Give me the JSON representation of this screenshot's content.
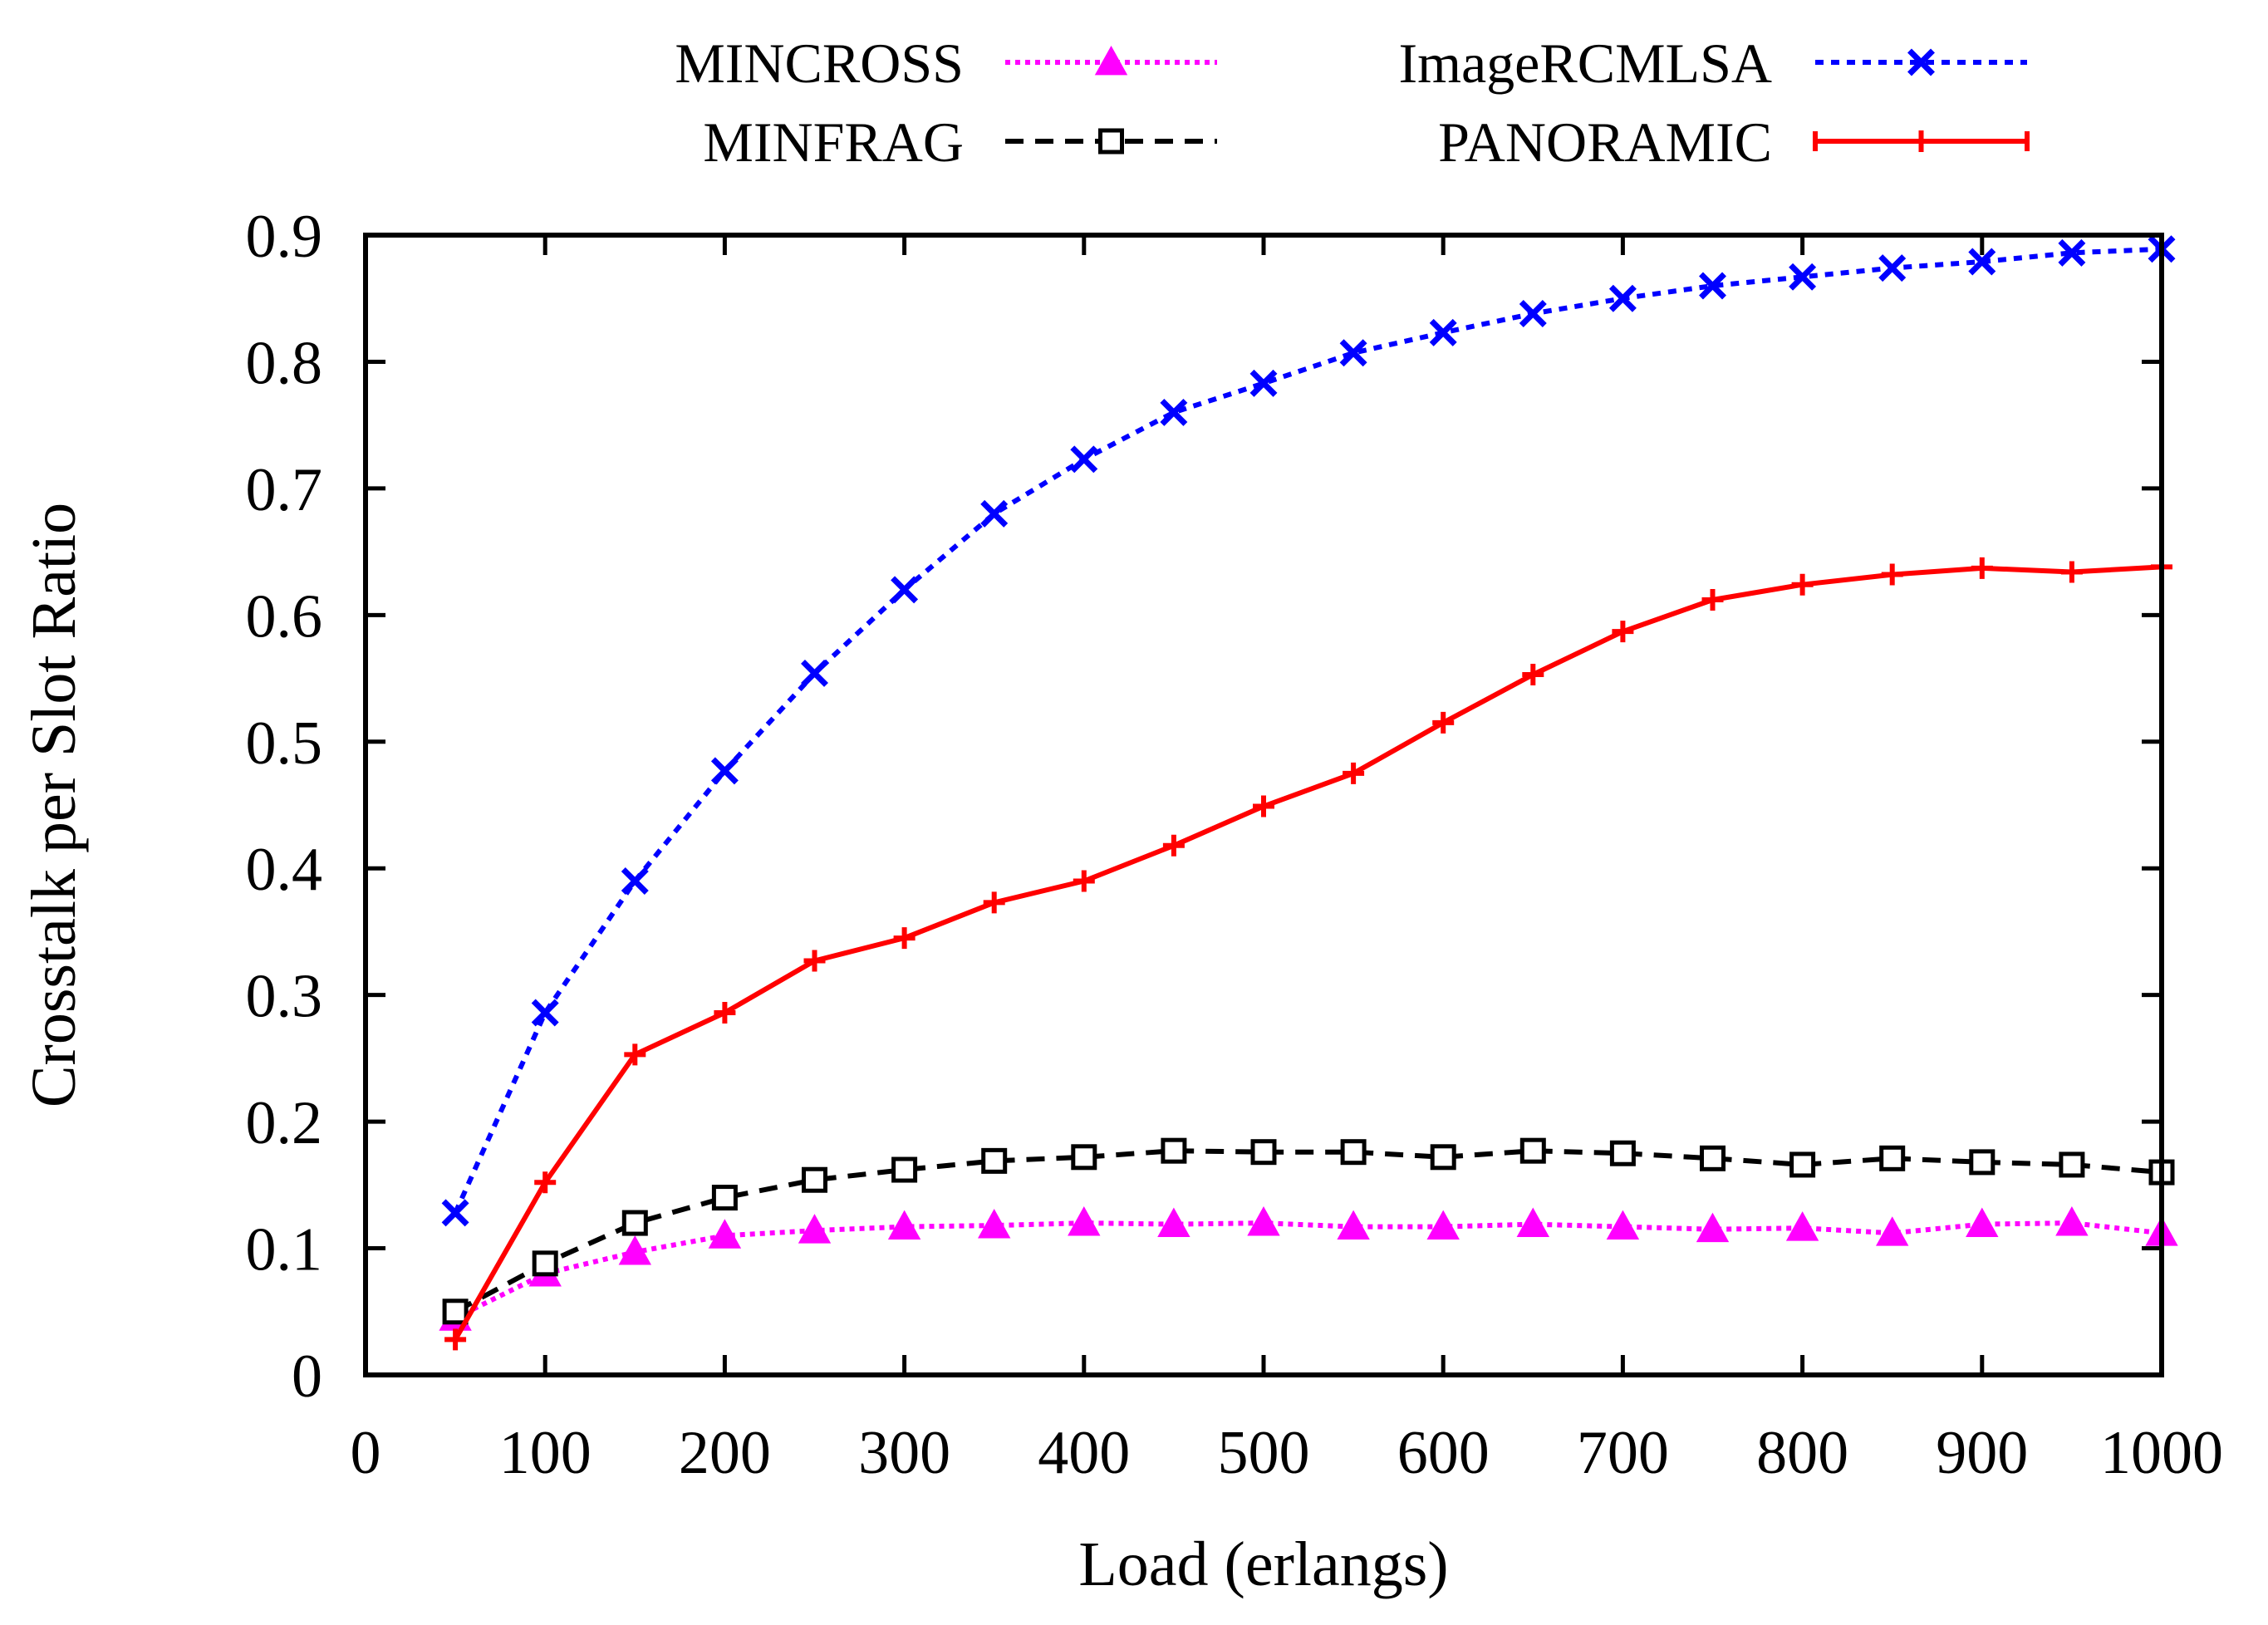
{
  "chart_data": {
    "type": "line",
    "title": "",
    "xlabel": "Load (erlangs)",
    "ylabel": "Crosstalk per Slot Ratio",
    "xlim": [
      0,
      1000
    ],
    "ylim": [
      0,
      0.9
    ],
    "xticks": [
      0,
      100,
      200,
      300,
      400,
      500,
      600,
      700,
      800,
      900,
      1000
    ],
    "yticks": [
      0,
      0.1,
      0.2,
      0.3,
      0.4,
      0.5,
      0.6,
      0.7,
      0.8,
      0.9
    ],
    "legend_position": "top, outside plot area",
    "x": [
      50,
      100,
      150,
      200,
      250,
      300,
      350,
      400,
      450,
      500,
      550,
      600,
      650,
      700,
      750,
      800,
      850,
      900,
      950,
      1000
    ],
    "series": [
      {
        "name": "MINCROSS",
        "color": "#ff00ff",
        "dash": "dotted",
        "marker": "triangle",
        "values": [
          0.045,
          0.08,
          0.097,
          0.11,
          0.114,
          0.117,
          0.118,
          0.12,
          0.119,
          0.12,
          0.117,
          0.117,
          0.119,
          0.117,
          0.115,
          0.116,
          0.112,
          0.119,
          0.12,
          0.112
        ]
      },
      {
        "name": "MINFRAG",
        "color": "#000000",
        "dash": "dashed",
        "marker": "square",
        "values": [
          0.05,
          0.088,
          0.12,
          0.14,
          0.154,
          0.162,
          0.169,
          0.172,
          0.177,
          0.176,
          0.176,
          0.172,
          0.177,
          0.175,
          0.171,
          0.166,
          0.171,
          0.168,
          0.166,
          0.16
        ]
      },
      {
        "name": "ImageRCMLSA",
        "color": "#0000ff",
        "dash": "dotted-fine",
        "marker": "cross",
        "values": [
          0.128,
          0.286,
          0.39,
          0.477,
          0.554,
          0.62,
          0.68,
          0.723,
          0.76,
          0.783,
          0.807,
          0.823,
          0.838,
          0.85,
          0.86,
          0.867,
          0.874,
          0.879,
          0.886,
          0.889
        ]
      },
      {
        "name": "PANORAMIC",
        "color": "#ff0000",
        "dash": "solid",
        "marker": "plus",
        "values": [
          0.028,
          0.152,
          0.253,
          0.286,
          0.327,
          0.345,
          0.373,
          0.39,
          0.418,
          0.449,
          0.475,
          0.515,
          0.553,
          0.587,
          0.612,
          0.624,
          0.632,
          0.637,
          0.634,
          0.638
        ]
      }
    ]
  }
}
